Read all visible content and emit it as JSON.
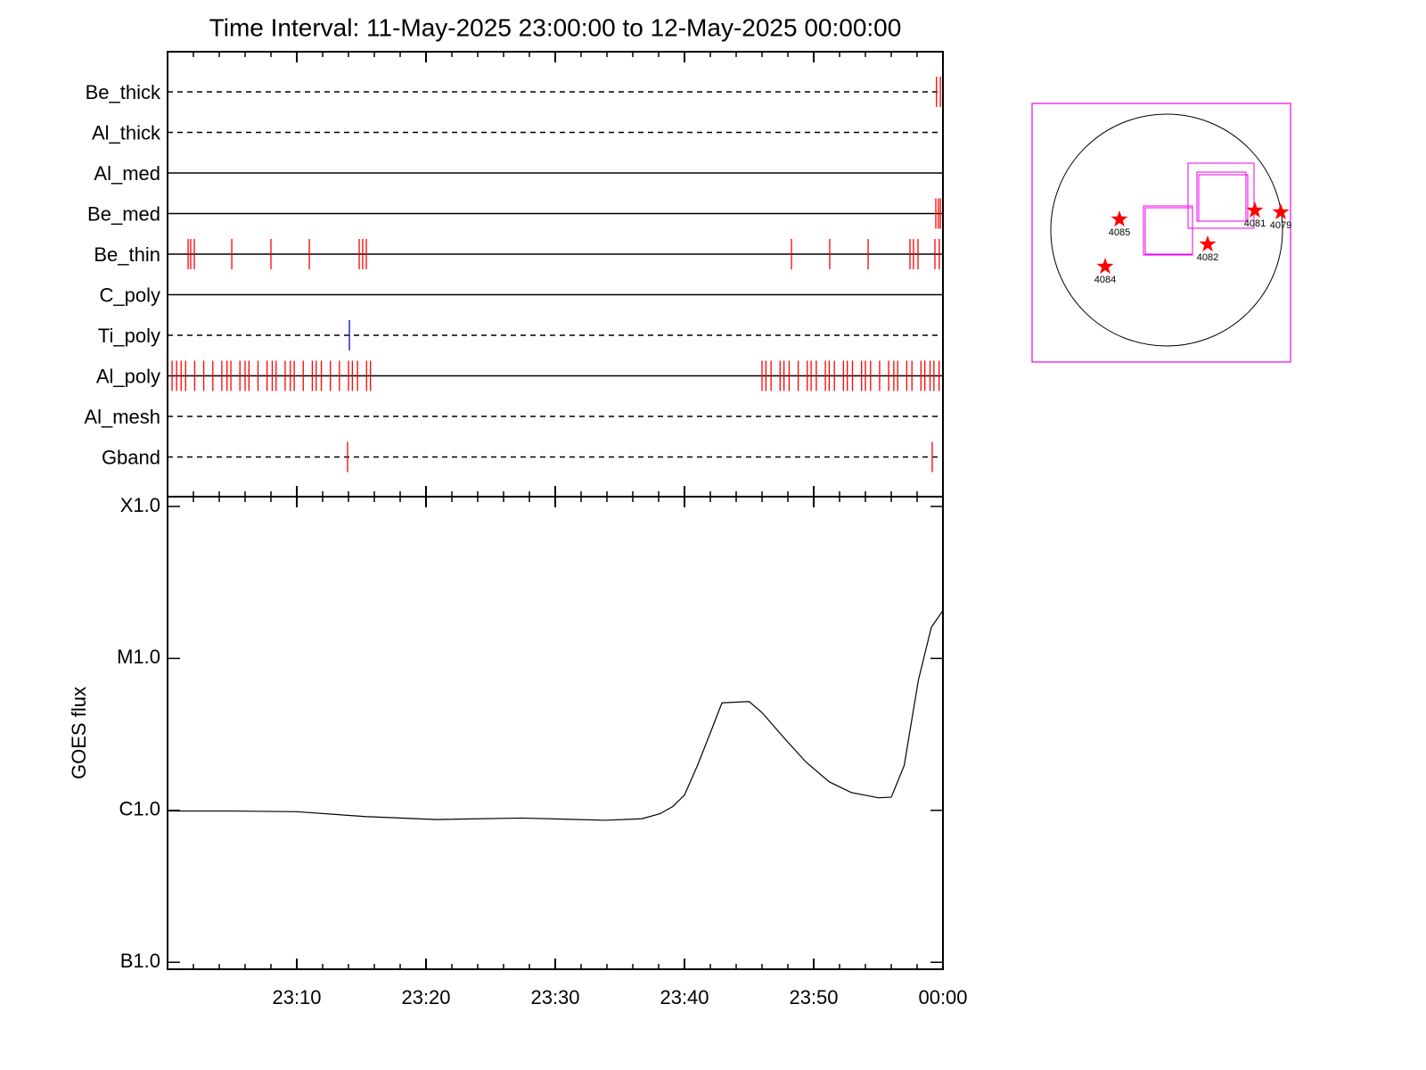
{
  "chart_data": [
    {
      "type": "timeline",
      "title": "Time Interval: 11-May-2025 23:00:00 to 12-May-2025 00:00:00",
      "xlim": [
        0,
        60
      ],
      "rows": [
        {
          "name": "Be_thick",
          "style": "dashed",
          "color": "#ff0000",
          "events": [
            59.5,
            59.8
          ]
        },
        {
          "name": "Al_thick",
          "style": "dashed",
          "color": "#ff0000",
          "events": []
        },
        {
          "name": "Al_med",
          "style": "solid",
          "color": "#ff0000",
          "events": []
        },
        {
          "name": "Be_med",
          "style": "solid",
          "color": "#ff0000",
          "events": [
            59.45,
            59.65,
            59.8
          ]
        },
        {
          "name": "Be_thin",
          "style": "solid",
          "color": "#ff0000",
          "events": [
            1.59,
            1.79,
            2.07,
            4.97,
            8.0,
            10.97,
            14.83,
            15.1,
            15.38,
            48.28,
            51.24,
            54.21,
            57.45,
            57.72,
            58.07,
            59.38,
            59.72
          ]
        },
        {
          "name": "C_poly",
          "style": "solid",
          "color": "#ff0000",
          "events": []
        },
        {
          "name": "Ti_poly",
          "style": "dashed",
          "color": "#0000cc",
          "events": [
            14.07
          ]
        },
        {
          "name": "Al_poly",
          "style": "solid",
          "color": "#ff0000",
          "events": [
            0.35,
            0.7,
            1.05,
            1.4,
            2.1,
            2.8,
            3.5,
            4.2,
            4.6,
            4.9,
            5.6,
            6.0,
            6.3,
            7.0,
            7.7,
            8.1,
            8.4,
            9.1,
            9.5,
            9.8,
            10.5,
            11.2,
            11.5,
            11.9,
            12.6,
            13.3,
            14.0,
            14.3,
            14.7,
            15.4,
            15.7,
            46.0,
            46.3,
            46.7,
            47.4,
            47.7,
            48.1,
            48.8,
            49.5,
            49.8,
            50.2,
            50.9,
            51.2,
            51.6,
            52.3,
            52.6,
            53.0,
            53.7,
            54.0,
            54.4,
            55.1,
            55.8,
            56.2,
            56.5,
            57.2,
            57.6,
            58.3,
            58.6,
            59.0,
            59.3,
            59.7
          ]
        },
        {
          "name": "Al_mesh",
          "style": "dashed",
          "color": "#ff0000",
          "events": []
        },
        {
          "name": "Gband",
          "style": "dashed",
          "color": "#ff0000",
          "events": [
            13.93,
            59.17
          ]
        }
      ]
    },
    {
      "type": "line",
      "ylabel": "GOES flux",
      "log": true,
      "color": "#000000",
      "xlim": [
        0,
        60
      ],
      "xticks": [
        {
          "value": 10,
          "label": "23:10"
        },
        {
          "value": 20,
          "label": "23:20"
        },
        {
          "value": 30,
          "label": "23:30"
        },
        {
          "value": 40,
          "label": "23:40"
        },
        {
          "value": 50,
          "label": "23:50"
        },
        {
          "value": 60,
          "label": "00:00"
        }
      ],
      "xminorticks": [
        2,
        4,
        6,
        8,
        12,
        14,
        16,
        18,
        22,
        24,
        26,
        28,
        32,
        34,
        36,
        38,
        42,
        44,
        46,
        48,
        52,
        54,
        56,
        58
      ],
      "ylim": [
        9e-08,
        0.000116
      ],
      "yticks": [
        {
          "value": 1e-07,
          "label": "B1.0"
        },
        {
          "value": 1e-06,
          "label": "C1.0"
        },
        {
          "value": 1e-05,
          "label": "M1.0"
        },
        {
          "value": 0.0001,
          "label": "X1.0"
        }
      ],
      "x": [
        0,
        4.97,
        10,
        15.3,
        20.8,
        27.4,
        33.9,
        36.7,
        38.1,
        39.1,
        40,
        41,
        42.1,
        42.9,
        45,
        46,
        47.7,
        49.4,
        51.2,
        52.9,
        55,
        56,
        57,
        58.1,
        59.1,
        60
      ],
      "values": [
        9.9e-07,
        9.9e-07,
        9.8e-07,
        9.1e-07,
        8.7e-07,
        8.9e-07,
        8.6e-07,
        8.8e-07,
        9.5e-07,
        1.06e-06,
        1.26e-06,
        1.97e-06,
        3.4e-06,
        5.1e-06,
        5.2e-06,
        4.4e-06,
        3e-06,
        2.08e-06,
        1.54e-06,
        1.31e-06,
        1.21e-06,
        1.22e-06,
        1.97e-06,
        7.2e-06,
        1.6e-05,
        2.07e-05
      ]
    }
  ],
  "context_map": {
    "regions": [
      "4085",
      "4084",
      "4082",
      "4081",
      "4079"
    ]
  }
}
